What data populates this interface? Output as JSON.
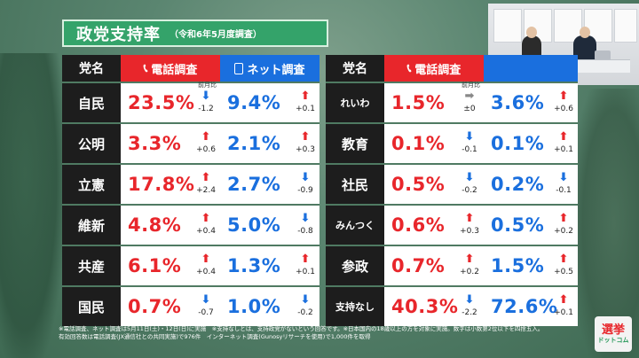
{
  "title": {
    "main": "政党支持率",
    "sub": "（令和6年5月度調査）"
  },
  "headers": {
    "party": "党名",
    "phone": "電話調査",
    "net": "ネット調査",
    "prev": "前月比"
  },
  "rows_left": [
    {
      "party": "自民",
      "phone": "23.5%",
      "phone_dir": "down",
      "phone_delta": "-1.2",
      "net": "9.4%",
      "net_dir": "up",
      "net_delta": "+0.1"
    },
    {
      "party": "公明",
      "phone": "3.3%",
      "phone_dir": "up",
      "phone_delta": "+0.6",
      "net": "2.1%",
      "net_dir": "up",
      "net_delta": "+0.3"
    },
    {
      "party": "立憲",
      "phone": "17.8%",
      "phone_dir": "up",
      "phone_delta": "+2.4",
      "net": "2.7%",
      "net_dir": "down",
      "net_delta": "-0.9"
    },
    {
      "party": "維新",
      "phone": "4.8%",
      "phone_dir": "up",
      "phone_delta": "+0.4",
      "net": "5.0%",
      "net_dir": "down",
      "net_delta": "-0.8"
    },
    {
      "party": "共産",
      "phone": "6.1%",
      "phone_dir": "up",
      "phone_delta": "+0.4",
      "net": "1.3%",
      "net_dir": "up",
      "net_delta": "+0.1"
    },
    {
      "party": "国民",
      "phone": "0.7%",
      "phone_dir": "down",
      "phone_delta": "-0.7",
      "net": "1.0%",
      "net_dir": "down",
      "net_delta": "-0.2"
    }
  ],
  "rows_right": [
    {
      "party": "れいわ",
      "phone": "1.5%",
      "phone_dir": "flat",
      "phone_delta": "±0",
      "net": "3.6%",
      "net_dir": "up",
      "net_delta": "+0.6"
    },
    {
      "party": "教育",
      "phone": "0.1%",
      "phone_dir": "down",
      "phone_delta": "-0.1",
      "net": "0.1%",
      "net_dir": "up",
      "net_delta": "+0.1"
    },
    {
      "party": "社民",
      "phone": "0.5%",
      "phone_dir": "down",
      "phone_delta": "-0.2",
      "net": "0.2%",
      "net_dir": "down",
      "net_delta": "-0.1"
    },
    {
      "party": "みんつく",
      "phone": "0.6%",
      "phone_dir": "up",
      "phone_delta": "+0.3",
      "net": "0.5%",
      "net_dir": "up",
      "net_delta": "+0.2"
    },
    {
      "party": "参政",
      "phone": "0.7%",
      "phone_dir": "up",
      "phone_delta": "+0.2",
      "net": "1.5%",
      "net_dir": "up",
      "net_delta": "+0.5"
    },
    {
      "party": "支持なし",
      "phone": "40.3%",
      "phone_dir": "down",
      "phone_delta": "-2.2",
      "net": "72.6%",
      "net_dir": "up",
      "net_delta": "+0.1"
    }
  ],
  "footnote": {
    "line1": "※電話調査、ネット調査は5月11日(土)・12日(日)に実施　※支持なしとは、支持政党がないという回答です。※日本国内の18歳以上の方を対象に実施。数字は小数第2位以下を四捨五入。",
    "line2": "有効回答数は電話調査(JX通信社との共同実施)で976件　インターネット調査(Gunosyリサーチを使用)で1,000件を取得"
  },
  "logo": {
    "line1": "選挙",
    "line2": "ドットコム"
  },
  "colors": {
    "accent_green": "#34a36a",
    "red": "#e8262b",
    "blue": "#1a6fde",
    "dark": "#1d1d1d"
  }
}
